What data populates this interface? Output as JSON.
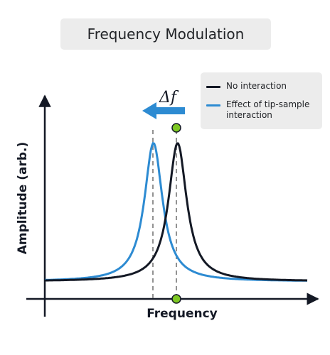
{
  "title": "Frequency Modulation",
  "legend": {
    "items": [
      {
        "label": "No interaction",
        "color": "#141925"
      },
      {
        "label": "Effect of tip-sample interaction",
        "color": "#2d8bd2"
      }
    ]
  },
  "axes": {
    "xlabel": "Frequency",
    "ylabel": "Amplitude (arb.)",
    "axis_color": "#141925"
  },
  "shift": {
    "label": "Δf",
    "arrow_direction": "left",
    "arrow_color": "#2d8bd2"
  },
  "markers": {
    "color": "#7ec823"
  },
  "chart_data": {
    "type": "line",
    "xlabel": "Frequency",
    "ylabel": "Amplitude (arb.)",
    "series": [
      {
        "name": "No interaction",
        "color": "#141925",
        "peak_x": 0.506,
        "baseline": 0.11,
        "peak_amplitude": 0.98,
        "width": 0.042
      },
      {
        "name": "Effect of tip-sample interaction",
        "color": "#2d8bd2",
        "peak_x": 0.414,
        "baseline": 0.11,
        "peak_amplitude": 0.98,
        "width": 0.042
      }
    ]
  }
}
